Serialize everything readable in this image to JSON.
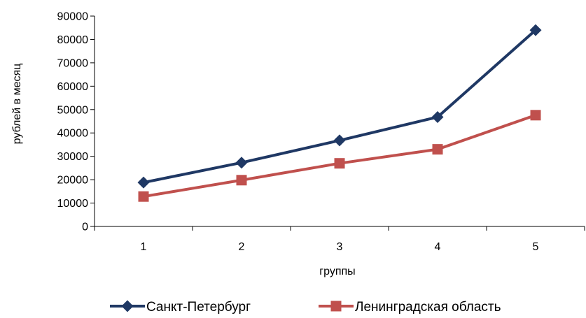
{
  "chart_data": {
    "type": "line",
    "title": "",
    "xlabel": "группы",
    "ylabel": "рублей в месяц",
    "categories": [
      "1",
      "2",
      "3",
      "4",
      "5"
    ],
    "ylim": [
      0,
      90000
    ],
    "yticks": [
      0,
      10000,
      20000,
      30000,
      40000,
      50000,
      60000,
      70000,
      80000,
      90000
    ],
    "grid": false,
    "legend_position": "bottom",
    "series": [
      {
        "name": "Санкт-Петербург",
        "values": [
          18800,
          27300,
          36800,
          46800,
          84000
        ],
        "color": "#1f3864",
        "marker": "diamond"
      },
      {
        "name": "Ленинградская область",
        "values": [
          12800,
          19800,
          27000,
          33000,
          47600
        ],
        "color": "#c0504d",
        "marker": "square"
      }
    ]
  }
}
